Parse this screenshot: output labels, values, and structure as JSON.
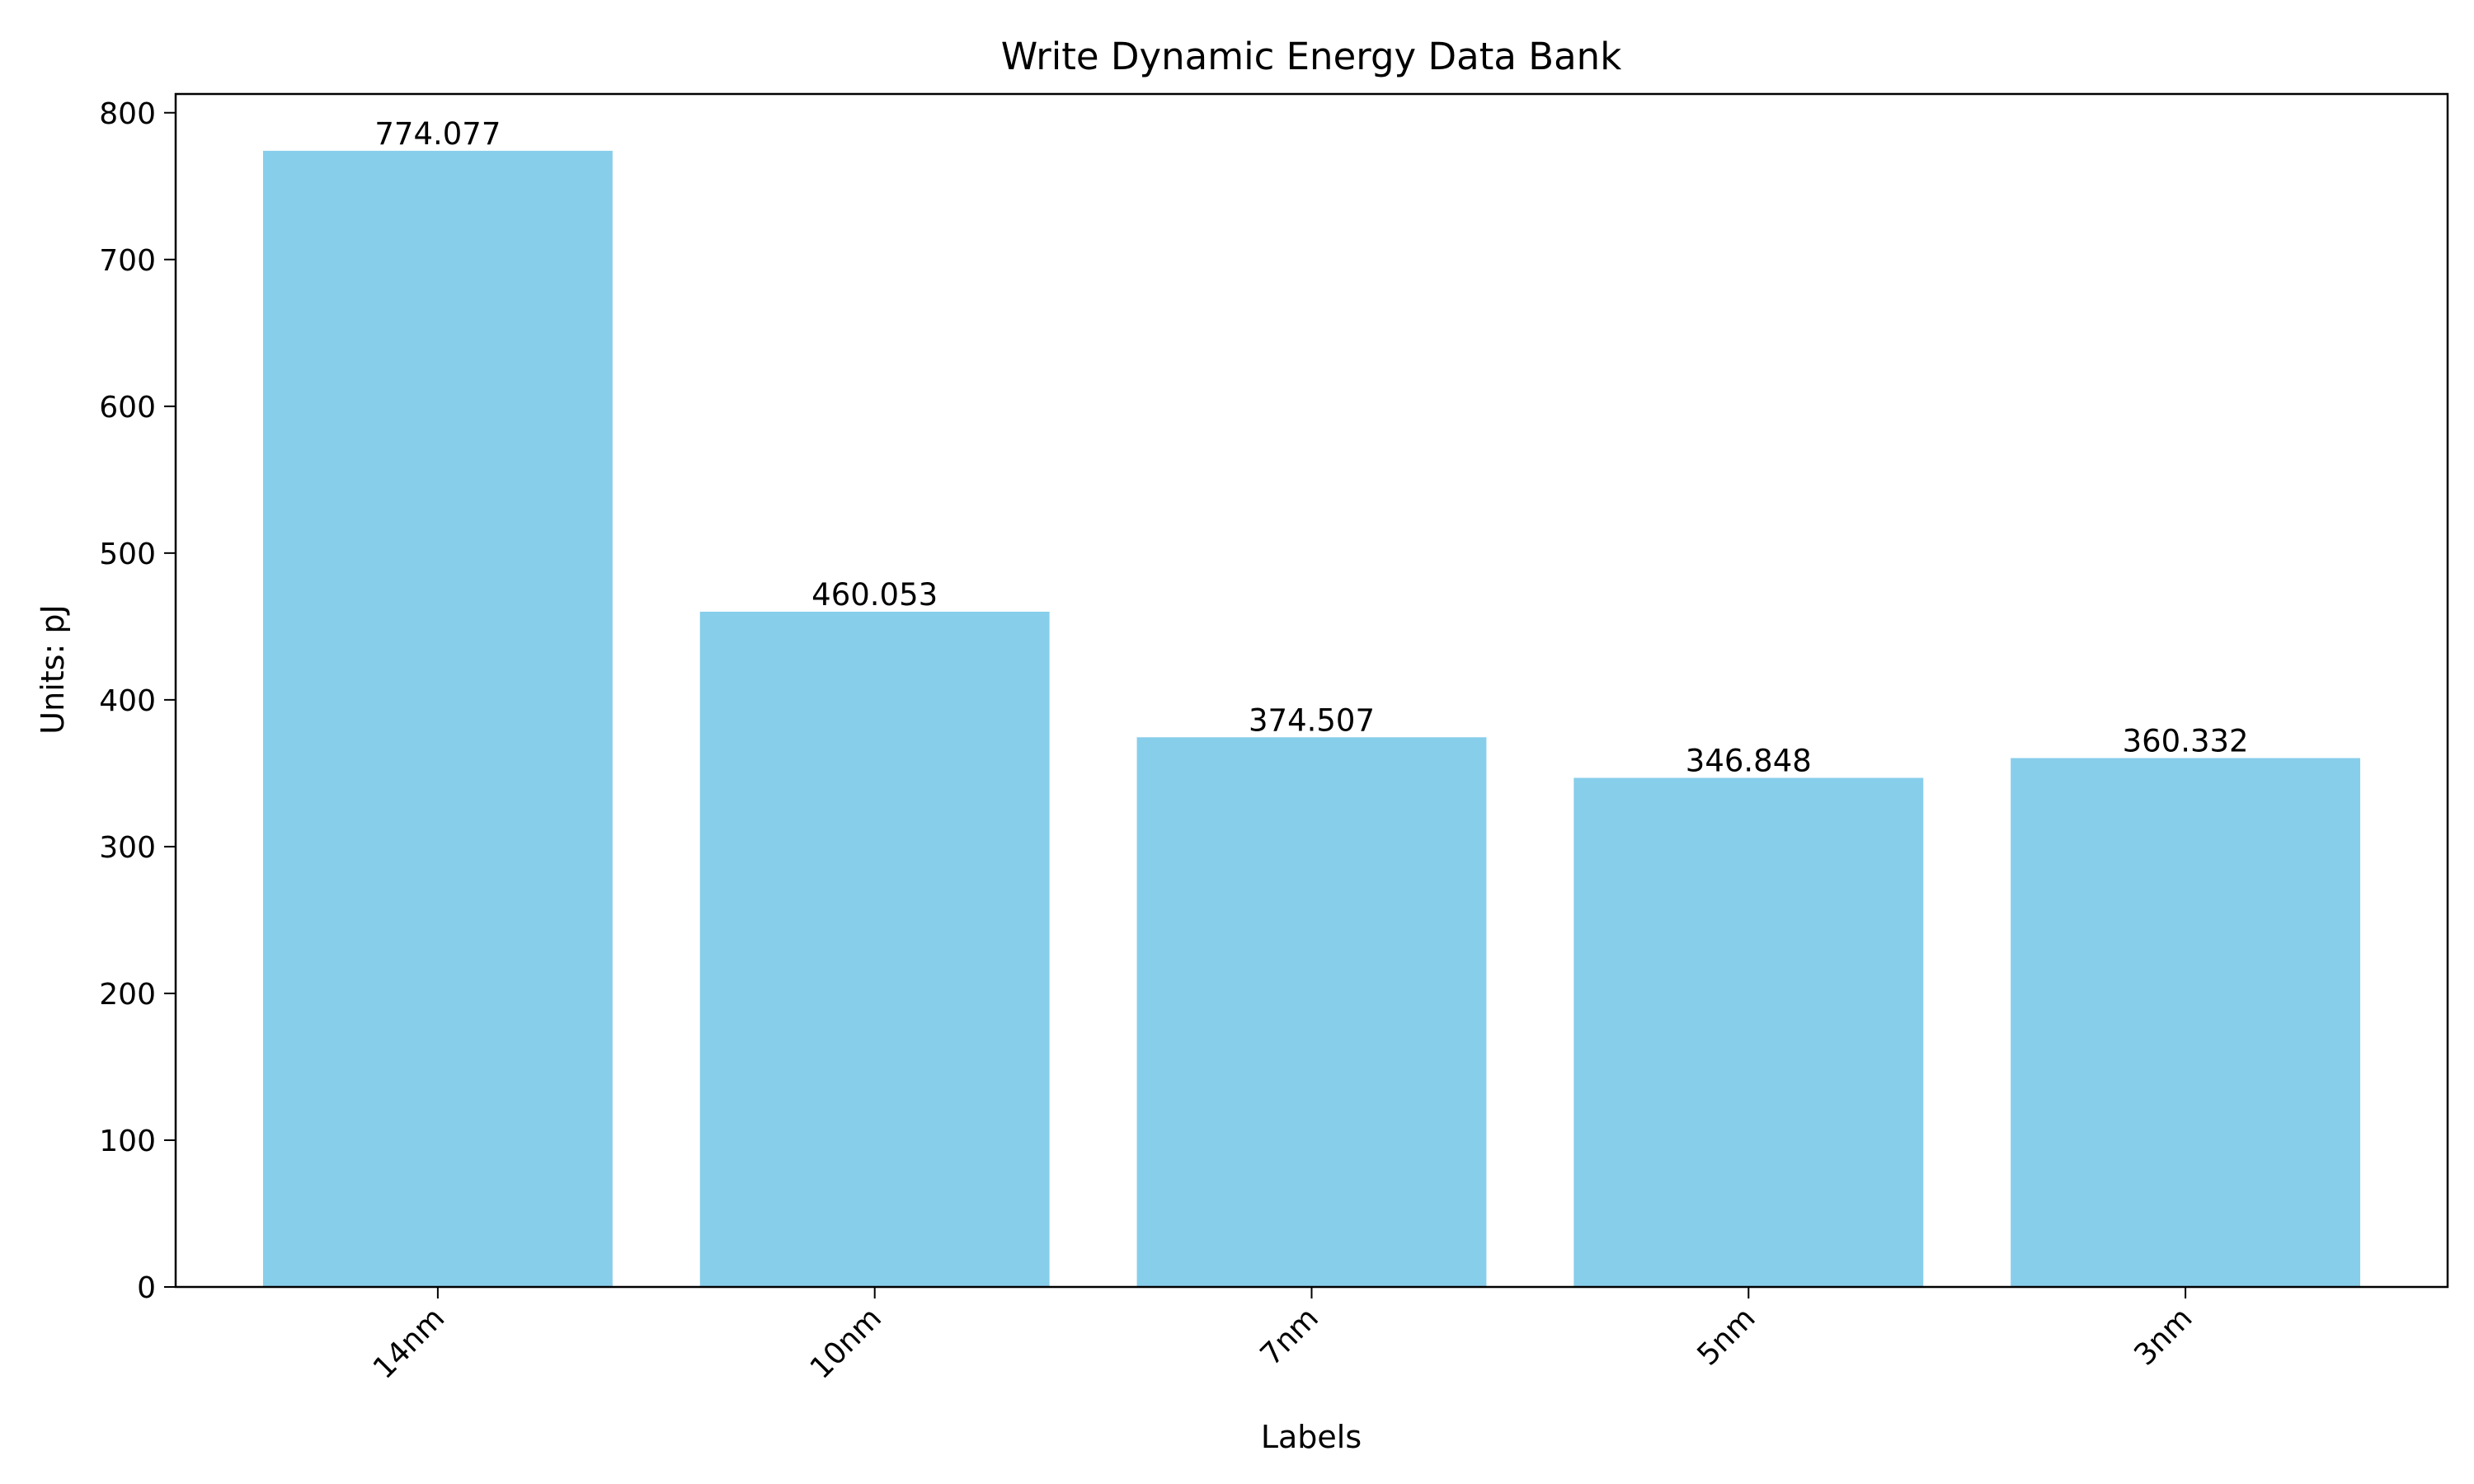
{
  "chart_data": {
    "type": "bar",
    "title": "Write Dynamic Energy Data Bank",
    "xlabel": "Labels",
    "ylabel": "Units: pJ",
    "categories": [
      "14nm",
      "10nm",
      "7nm",
      "5nm",
      "3nm"
    ],
    "values": [
      774.077,
      460.053,
      374.507,
      346.848,
      360.332
    ],
    "value_labels": [
      "774.077",
      "460.053",
      "374.507",
      "346.848",
      "360.332"
    ],
    "ylim": [
      0,
      812.78
    ],
    "yticks": [
      0,
      100,
      200,
      300,
      400,
      500,
      600,
      700,
      800
    ],
    "grid": false,
    "legend": "none",
    "bar_color": "#87CEEB"
  }
}
